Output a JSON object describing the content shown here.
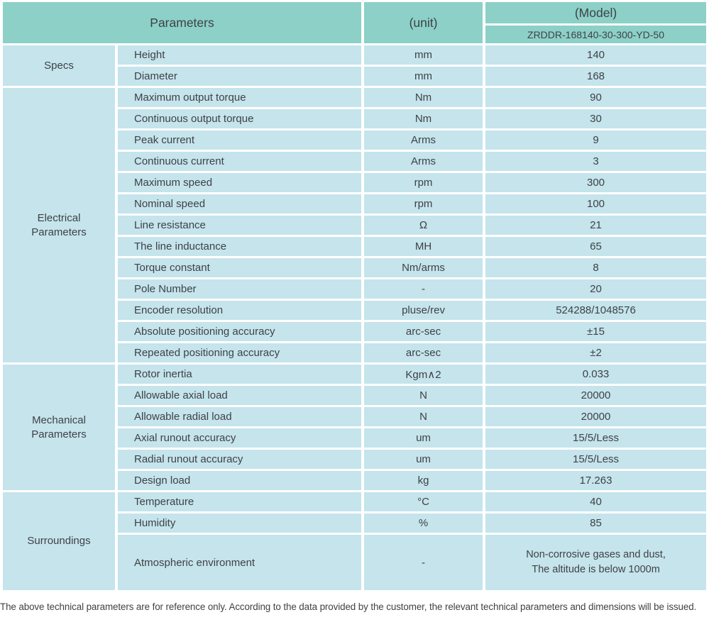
{
  "colors": {
    "header_bg": "#8cd0c7",
    "row_bg": "#c5e4ec",
    "text": "#3e4245",
    "gap": "#ffffff"
  },
  "header": {
    "parameters_label": "Parameters",
    "unit_label": "(unit)",
    "model_label": "(Model)",
    "model_value": "ZRDDR-168140-30-300-YD-50"
  },
  "sections": [
    {
      "group": "Specs",
      "rows": [
        {
          "parameter": "Height",
          "unit": "mm",
          "value": "140"
        },
        {
          "parameter": "Diameter",
          "unit": "mm",
          "value": "168"
        }
      ]
    },
    {
      "group": "Electrical\nParameters",
      "rows": [
        {
          "parameter": "Maximum output torque",
          "unit": "Nm",
          "value": "90"
        },
        {
          "parameter": "Continuous output torque",
          "unit": "Nm",
          "value": "30"
        },
        {
          "parameter": "Peak current",
          "unit": "Arms",
          "value": "9"
        },
        {
          "parameter": "Continuous current",
          "unit": "Arms",
          "value": "3"
        },
        {
          "parameter": "Maximum speed",
          "unit": "rpm",
          "value": "300"
        },
        {
          "parameter": "Nominal speed",
          "unit": "rpm",
          "value": "100"
        },
        {
          "parameter": "Line resistance",
          "unit": "Ω",
          "value": "21"
        },
        {
          "parameter": "The line inductance",
          "unit": "MH",
          "value": "65"
        },
        {
          "parameter": "Torque constant",
          "unit": "Nm/arms",
          "value": "8"
        },
        {
          "parameter": "Pole Number",
          "unit": "-",
          "value": "20"
        },
        {
          "parameter": "Encoder resolution",
          "unit": "pluse/rev",
          "value": "524288/1048576"
        },
        {
          "parameter": "Absolute positioning accuracy",
          "unit": "arc-sec",
          "value": "±15"
        },
        {
          "parameter": "Repeated positioning accuracy",
          "unit": "arc-sec",
          "value": "±2"
        }
      ]
    },
    {
      "group": "Mechanical\nParameters",
      "rows": [
        {
          "parameter": "Rotor inertia",
          "unit": "Kgm∧2",
          "value": "0.033"
        },
        {
          "parameter": "Allowable axial load",
          "unit": "N",
          "value": "20000"
        },
        {
          "parameter": "Allowable radial load",
          "unit": "N",
          "value": "20000"
        },
        {
          "parameter": "Axial runout accuracy",
          "unit": "um",
          "value": "15/5/Less"
        },
        {
          "parameter": "Radial runout accuracy",
          "unit": "um",
          "value": "15/5/Less"
        },
        {
          "parameter": "Design load",
          "unit": "kg",
          "value": "17.263"
        }
      ]
    },
    {
      "group": "Surroundings",
      "rows": [
        {
          "parameter": "Temperature",
          "unit": "°C",
          "value": "40"
        },
        {
          "parameter": "Humidity",
          "unit": "%",
          "value": "85"
        },
        {
          "parameter": "Atmospheric environment",
          "unit": "-",
          "value": "Non-corrosive gases and dust,\nThe altitude is below 1000m"
        }
      ]
    }
  ],
  "footer": {
    "note": "The above technical parameters are for reference only. According to the data provided by the customer, the relevant technical parameters and dimensions will be issued."
  }
}
